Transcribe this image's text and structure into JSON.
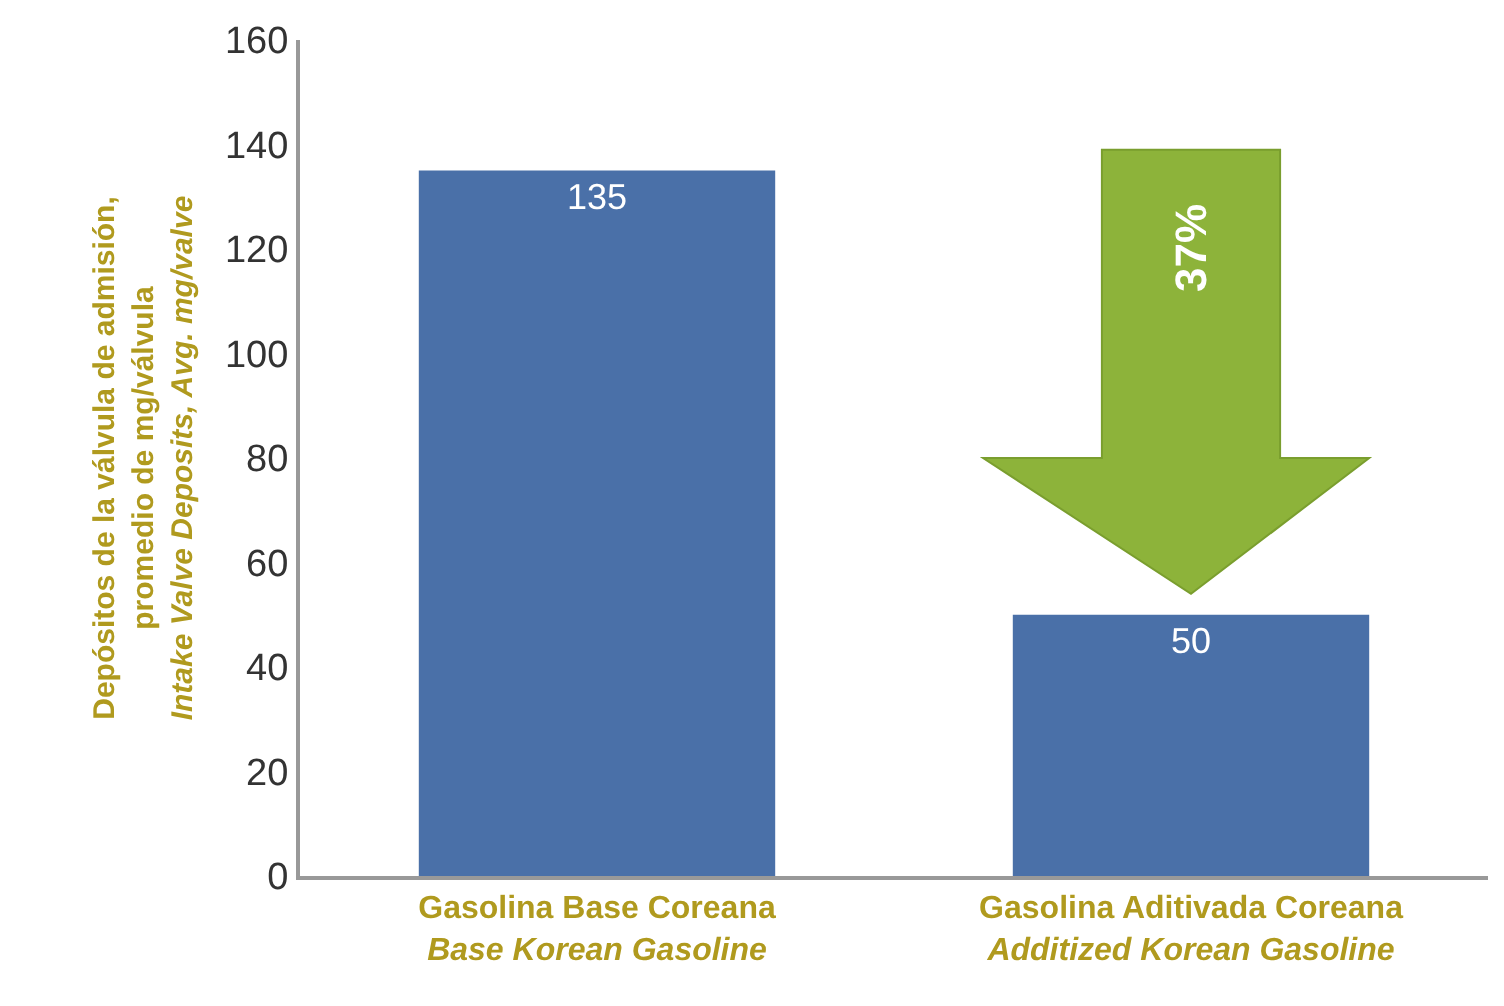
{
  "chart_data": {
    "type": "bar",
    "categories": [
      "Gasolina Base Coreana\nBase Korean Gasoline",
      "Gasolina Aditivada Coreana\nAdditized Korean Gasoline"
    ],
    "values": [
      135,
      50
    ],
    "color": "#4a70a8",
    "ylabel": "Depósitos de la válvula de admisión,\npromedio de mg/válvula\nIntake Valve Deposits, Avg. mg/valve",
    "ylim": [
      0,
      160
    ],
    "yticks": [
      0,
      20,
      40,
      60,
      80,
      100,
      120,
      140,
      160
    ],
    "data_labels": true,
    "annotations": [
      "37%"
    ]
  }
}
